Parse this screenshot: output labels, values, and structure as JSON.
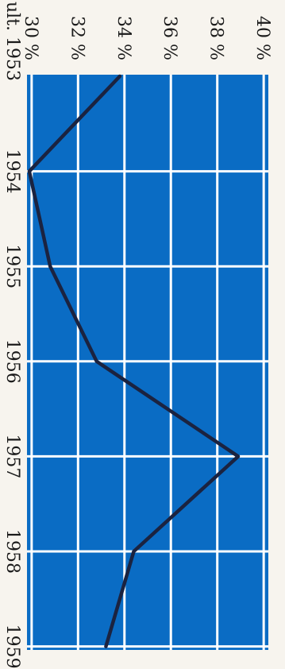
{
  "chart_data": {
    "type": "line",
    "x": [
      "ult. 1953",
      "1954",
      "1955",
      "1956",
      "1957",
      "1958",
      "1959"
    ],
    "y_ticks": [
      "30 %",
      "32 %",
      "34 %",
      "36 %",
      "38 %",
      "40 %"
    ],
    "ylim": [
      29.8,
      40.2
    ],
    "series": [
      {
        "values": [
          33.8,
          29.9,
          30.8,
          32.8,
          38.9,
          34.4,
          33.2
        ]
      }
    ],
    "orientation": "rotated 90° clockwise (x runs top-to-bottom, y increases to the right)",
    "grid": true,
    "colors": {
      "plot_background": "#0a6cc4",
      "grid": "#ffffff",
      "line": "#1b2340"
    }
  }
}
